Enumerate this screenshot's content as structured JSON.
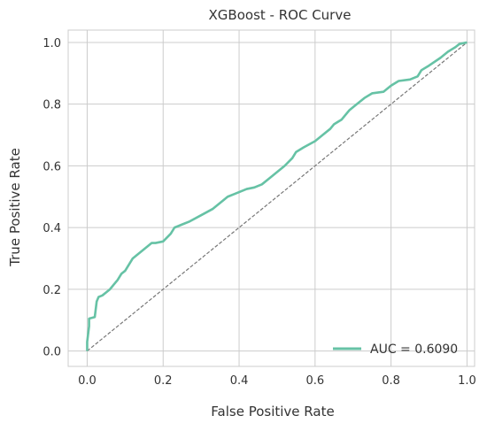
{
  "chart_data": {
    "type": "line",
    "title": "XGBoost - ROC Curve",
    "xlabel": "False Positive Rate",
    "ylabel": "True Positive Rate",
    "xlim": [
      -0.05,
      1.02
    ],
    "ylim": [
      -0.05,
      1.04
    ],
    "xticks": [
      0.0,
      0.2,
      0.4,
      0.6,
      0.8,
      1.0
    ],
    "xtick_labels": [
      "0.0",
      "0.2",
      "0.4",
      "0.6",
      "0.8",
      "1.0"
    ],
    "yticks": [
      0.0,
      0.2,
      0.4,
      0.6,
      0.8,
      1.0
    ],
    "ytick_labels": [
      "0.0",
      "0.2",
      "0.4",
      "0.6",
      "0.8",
      "1.0"
    ],
    "grid": true,
    "legend_position": "lower-right",
    "series": [
      {
        "name": "AUC = 0.6090",
        "color": "#66c2a5",
        "style": "solid",
        "x": [
          0.0,
          0.0,
          0.005,
          0.005,
          0.02,
          0.025,
          0.03,
          0.04,
          0.05,
          0.06,
          0.07,
          0.08,
          0.09,
          0.1,
          0.11,
          0.12,
          0.13,
          0.15,
          0.16,
          0.17,
          0.18,
          0.2,
          0.22,
          0.23,
          0.25,
          0.27,
          0.3,
          0.33,
          0.35,
          0.37,
          0.39,
          0.42,
          0.44,
          0.46,
          0.48,
          0.5,
          0.52,
          0.54,
          0.55,
          0.57,
          0.6,
          0.62,
          0.64,
          0.65,
          0.67,
          0.69,
          0.71,
          0.73,
          0.75,
          0.78,
          0.8,
          0.82,
          0.85,
          0.87,
          0.88,
          0.9,
          0.93,
          0.95,
          0.97,
          0.98,
          1.0
        ],
        "y": [
          0.0,
          0.03,
          0.08,
          0.105,
          0.11,
          0.16,
          0.175,
          0.18,
          0.19,
          0.2,
          0.215,
          0.23,
          0.25,
          0.26,
          0.28,
          0.3,
          0.31,
          0.33,
          0.34,
          0.35,
          0.35,
          0.355,
          0.38,
          0.4,
          0.41,
          0.42,
          0.44,
          0.46,
          0.48,
          0.5,
          0.51,
          0.525,
          0.53,
          0.54,
          0.56,
          0.58,
          0.6,
          0.625,
          0.645,
          0.66,
          0.68,
          0.7,
          0.72,
          0.735,
          0.75,
          0.78,
          0.8,
          0.82,
          0.835,
          0.84,
          0.86,
          0.875,
          0.88,
          0.89,
          0.91,
          0.925,
          0.95,
          0.97,
          0.985,
          0.995,
          1.0
        ]
      },
      {
        "color": "#777777",
        "style": "dashed",
        "x": [
          0.0,
          1.0
        ],
        "y": [
          0.0,
          1.0
        ]
      }
    ]
  }
}
